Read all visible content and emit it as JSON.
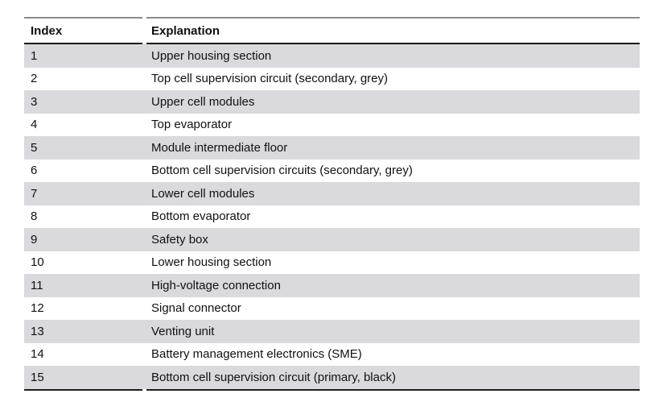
{
  "table": {
    "columns": [
      "Index",
      "Explanation"
    ],
    "rows": [
      {
        "index": "1",
        "explanation": "Upper housing section"
      },
      {
        "index": "2",
        "explanation": "Top cell supervision circuit (secondary, grey)"
      },
      {
        "index": "3",
        "explanation": "Upper cell modules"
      },
      {
        "index": "4",
        "explanation": "Top evaporator"
      },
      {
        "index": "5",
        "explanation": "Module intermediate floor"
      },
      {
        "index": "6",
        "explanation": "Bottom cell supervision circuits (secondary, grey)"
      },
      {
        "index": "7",
        "explanation": "Lower cell modules"
      },
      {
        "index": "8",
        "explanation": "Bottom evaporator"
      },
      {
        "index": "9",
        "explanation": "Safety box"
      },
      {
        "index": "10",
        "explanation": "Lower housing section"
      },
      {
        "index": "11",
        "explanation": "High-voltage connection"
      },
      {
        "index": "12",
        "explanation": "Signal connector"
      },
      {
        "index": "13",
        "explanation": "Venting unit"
      },
      {
        "index": "14",
        "explanation": "Battery management electronics (SME)"
      },
      {
        "index": "15",
        "explanation": "Bottom cell supervision circuit (primary, black)"
      }
    ],
    "colors": {
      "stripe": "#d9d9de",
      "top_border": "#8c8c8c",
      "header_border": "#1a1a1a",
      "bottom_border": "#1f1f1f",
      "text": "#111111"
    }
  }
}
